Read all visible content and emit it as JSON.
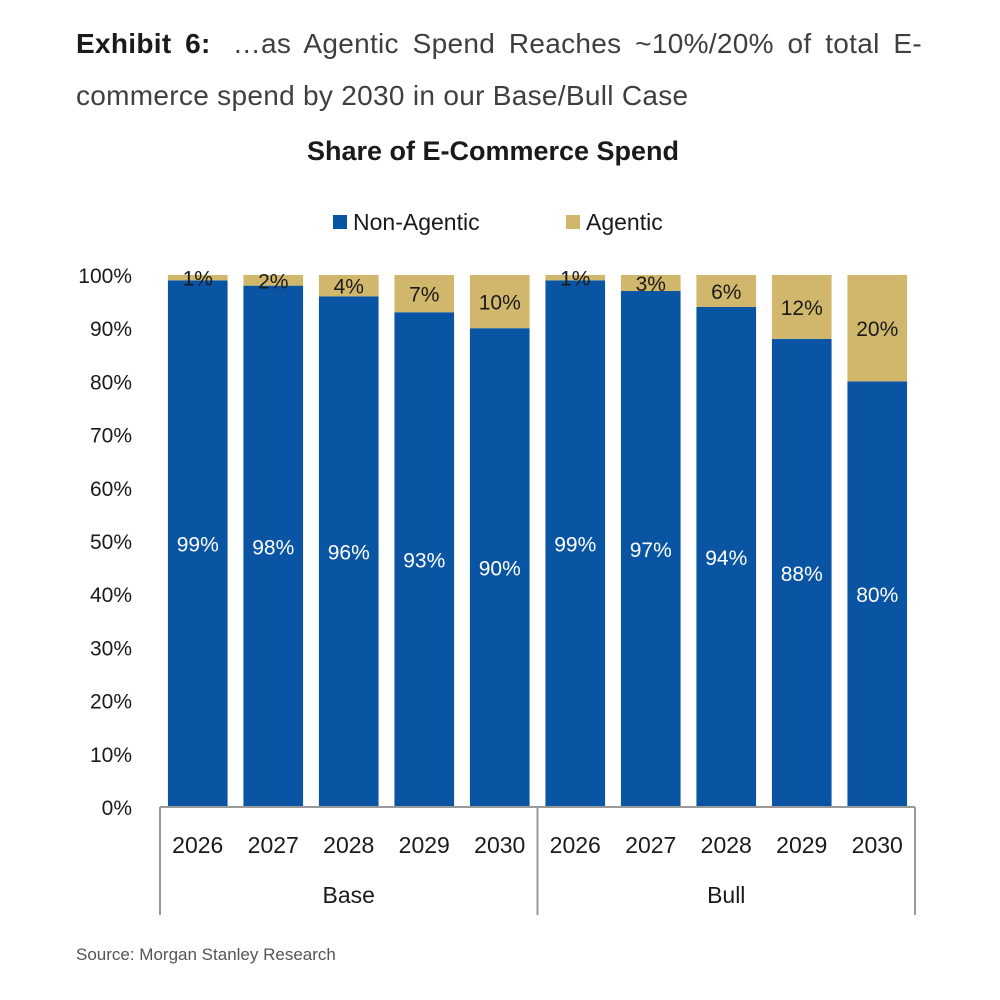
{
  "heading": {
    "label": "Exhibit 6:",
    "text": "…as Agentic Spend Reaches ~10%/20% of total E-commerce spend by 2030 in our Base/Bull Case"
  },
  "source": "Source: Morgan Stanley Research",
  "colors": {
    "non_agentic": "#0a55a3",
    "agentic": "#d0b76b",
    "axis": "#999999",
    "text": "#1a1a1a"
  },
  "chart_data": {
    "type": "bar",
    "stacked": true,
    "title": "Share of E-Commerce Spend",
    "legend_position": "top",
    "grid": false,
    "ylim": [
      0,
      100
    ],
    "y_ticks": [
      "0%",
      "10%",
      "20%",
      "30%",
      "40%",
      "50%",
      "60%",
      "70%",
      "80%",
      "90%",
      "100%"
    ],
    "groups": [
      {
        "name": "Base",
        "categories": [
          "2026",
          "2027",
          "2028",
          "2029",
          "2030"
        ]
      },
      {
        "name": "Bull",
        "categories": [
          "2026",
          "2027",
          "2028",
          "2029",
          "2030"
        ]
      }
    ],
    "series": [
      {
        "name": "Non-Agentic",
        "values": [
          99,
          98,
          96,
          93,
          90,
          99,
          97,
          94,
          88,
          80
        ],
        "labels": [
          "99%",
          "98%",
          "96%",
          "93%",
          "90%",
          "99%",
          "97%",
          "94%",
          "88%",
          "80%"
        ]
      },
      {
        "name": "Agentic",
        "values": [
          1,
          2,
          4,
          7,
          10,
          1,
          3,
          6,
          12,
          20
        ],
        "labels": [
          "1%",
          "2%",
          "4%",
          "7%",
          "10%",
          "1%",
          "3%",
          "6%",
          "12%",
          "20%"
        ]
      }
    ]
  }
}
